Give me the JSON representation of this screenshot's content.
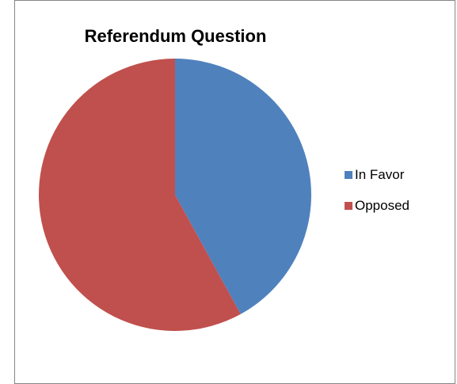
{
  "chart_data": {
    "type": "pie",
    "title": "Referendum Question",
    "categories": [
      "In Favor",
      "Opposed"
    ],
    "values": [
      42,
      58
    ],
    "colors": [
      "#4F81BD",
      "#C0504D"
    ],
    "start_angle": "12 o'clock, clockwise",
    "legend_position": "right"
  }
}
